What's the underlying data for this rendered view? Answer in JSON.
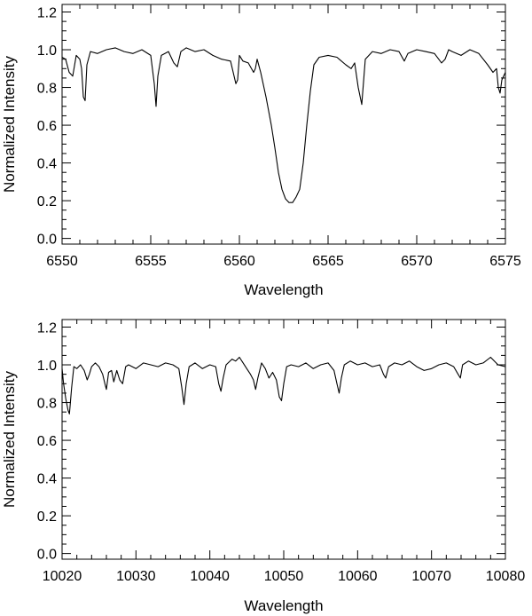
{
  "chart_data": [
    {
      "type": "line",
      "title": "",
      "xlabel": "Wavelength",
      "ylabel": "Normalized Intensity",
      "xlim": [
        6550,
        6575
      ],
      "ylim": [
        -0.03,
        1.24
      ],
      "xticks": [
        6550,
        6555,
        6560,
        6565,
        6570,
        6575
      ],
      "xtick_labels": [
        "6550",
        "6555",
        "6560",
        "6565",
        "6570",
        "6575"
      ],
      "yticks": [
        0.0,
        0.2,
        0.4,
        0.6,
        0.8,
        1.0,
        1.2
      ],
      "ytick_labels": [
        "0.0",
        "0.2",
        "0.4",
        "0.6",
        "0.8",
        "1.0",
        "1.2"
      ],
      "grid": false,
      "series": [
        {
          "x": [
            6550.0,
            6550.2,
            6550.4,
            6550.6,
            6550.8,
            6551.0,
            6551.1,
            6551.2,
            6551.3,
            6551.4,
            6551.6,
            6552.0,
            6552.5,
            6553.0,
            6553.5,
            6554.0,
            6554.5,
            6555.0,
            6555.2,
            6555.3,
            6555.4,
            6555.6,
            6556.0,
            6556.3,
            6556.5,
            6556.7,
            6557.0,
            6557.5,
            6558.0,
            6558.5,
            6559.0,
            6559.5,
            6559.8,
            6559.9,
            6560.0,
            6560.2,
            6560.5,
            6560.8,
            6560.9,
            6561.0,
            6561.2,
            6561.5,
            6561.8,
            6562.0,
            6562.2,
            6562.4,
            6562.6,
            6562.8,
            6563.0,
            6563.2,
            6563.4,
            6563.6,
            6563.8,
            6564.0,
            6564.2,
            6564.5,
            6565.0,
            6565.5,
            6566.0,
            6566.3,
            6566.5,
            6566.7,
            6566.9,
            6567.1,
            6567.5,
            6568.0,
            6568.5,
            6569.0,
            6569.3,
            6569.5,
            6570.0,
            6570.5,
            6571.0,
            6571.4,
            6571.6,
            6571.8,
            6572.0,
            6572.5,
            6573.0,
            6573.5,
            6574.0,
            6574.3,
            6574.5,
            6574.6,
            6574.7,
            6574.8,
            6575.0
          ],
          "values": [
            0.96,
            0.95,
            0.88,
            0.86,
            0.97,
            0.95,
            0.9,
            0.75,
            0.73,
            0.92,
            0.99,
            0.98,
            1.0,
            1.01,
            0.99,
            0.98,
            1.0,
            0.97,
            0.82,
            0.7,
            0.86,
            0.97,
            0.99,
            0.93,
            0.91,
            0.99,
            1.01,
            0.99,
            1.0,
            0.97,
            0.95,
            0.94,
            0.82,
            0.84,
            0.97,
            0.94,
            0.93,
            0.88,
            0.9,
            0.95,
            0.88,
            0.75,
            0.6,
            0.48,
            0.35,
            0.26,
            0.21,
            0.19,
            0.19,
            0.22,
            0.26,
            0.4,
            0.6,
            0.78,
            0.92,
            0.96,
            0.97,
            0.96,
            0.92,
            0.9,
            0.93,
            0.8,
            0.71,
            0.95,
            0.99,
            0.98,
            1.0,
            0.99,
            0.94,
            0.98,
            1.0,
            0.99,
            0.98,
            0.93,
            0.95,
            1.0,
            0.99,
            0.97,
            1.0,
            0.98,
            0.92,
            0.88,
            0.9,
            0.8,
            0.77,
            0.84,
            0.88
          ]
        }
      ]
    },
    {
      "type": "line",
      "title": "",
      "xlabel": "Wavelength",
      "ylabel": "Normalized Intensity",
      "xlim": [
        10020,
        10080
      ],
      "ylim": [
        -0.03,
        1.24
      ],
      "xticks": [
        10020,
        10030,
        10040,
        10050,
        10060,
        10070,
        10080
      ],
      "xtick_labels": [
        "10020",
        "10030",
        "10040",
        "10050",
        "10060",
        "10070",
        "10080"
      ],
      "yticks": [
        0.0,
        0.2,
        0.4,
        0.6,
        0.8,
        1.0,
        1.2
      ],
      "ytick_labels": [
        "0.0",
        "0.2",
        "0.4",
        "0.6",
        "0.8",
        "1.0",
        "1.2"
      ],
      "grid": false,
      "series": [
        {
          "x": [
            10020.0,
            10020.2,
            10020.5,
            10020.8,
            10021.0,
            10021.3,
            10021.6,
            10022.0,
            10022.5,
            10023.0,
            10023.4,
            10023.7,
            10024.0,
            10024.5,
            10025.0,
            10025.5,
            10025.8,
            10026.0,
            10026.3,
            10026.7,
            10027.0,
            10027.4,
            10027.8,
            10028.2,
            10028.6,
            10029.0,
            10030.0,
            10031.0,
            10032.0,
            10033.0,
            10034.0,
            10035.0,
            10035.8,
            10036.2,
            10036.5,
            10036.8,
            10037.2,
            10038.0,
            10039.0,
            10040.0,
            10040.8,
            10041.2,
            10041.5,
            10041.8,
            10042.2,
            10043.0,
            10043.5,
            10044.0,
            10044.5,
            10045.0,
            10045.5,
            10045.9,
            10046.2,
            10046.5,
            10047.0,
            10047.5,
            10048.0,
            10048.5,
            10049.0,
            10049.4,
            10049.7,
            10050.0,
            10050.4,
            10051.0,
            10052.0,
            10053.0,
            10054.0,
            10055.0,
            10056.0,
            10056.8,
            10057.2,
            10057.5,
            10057.8,
            10058.2,
            10059.0,
            10060.0,
            10061.0,
            10062.0,
            10063.0,
            10063.5,
            10063.8,
            10064.2,
            10065.0,
            10066.0,
            10067.0,
            10068.0,
            10069.0,
            10070.0,
            10071.0,
            10072.0,
            10073.0,
            10073.6,
            10073.9,
            10074.2,
            10075.0,
            10076.0,
            10077.0,
            10078.0,
            10079.0,
            10080.0
          ],
          "values": [
            0.98,
            0.9,
            0.82,
            0.76,
            0.74,
            0.88,
            0.99,
            0.98,
            1.0,
            0.97,
            0.92,
            0.95,
            0.99,
            1.01,
            0.99,
            0.95,
            0.9,
            0.87,
            0.96,
            0.97,
            0.91,
            0.97,
            0.92,
            0.9,
            0.99,
            1.0,
            0.98,
            1.01,
            1.0,
            0.99,
            1.01,
            1.0,
            0.98,
            0.88,
            0.79,
            0.9,
            0.99,
            1.01,
            0.98,
            1.0,
            0.99,
            0.9,
            0.86,
            0.93,
            1.0,
            1.03,
            1.02,
            1.04,
            1.01,
            0.98,
            0.95,
            0.92,
            0.87,
            0.93,
            1.01,
            0.98,
            0.93,
            0.96,
            0.92,
            0.83,
            0.81,
            0.9,
            0.99,
            1.0,
            0.99,
            1.01,
            0.98,
            1.0,
            1.01,
            0.97,
            0.9,
            0.85,
            0.93,
            1.0,
            1.02,
            1.0,
            1.01,
            0.99,
            1.0,
            0.95,
            0.93,
            0.99,
            1.01,
            1.0,
            1.02,
            0.99,
            0.97,
            0.98,
            1.0,
            1.01,
            0.99,
            0.95,
            0.93,
            1.0,
            1.02,
            1.0,
            1.01,
            1.04,
            1.0,
            0.99
          ]
        }
      ]
    }
  ]
}
